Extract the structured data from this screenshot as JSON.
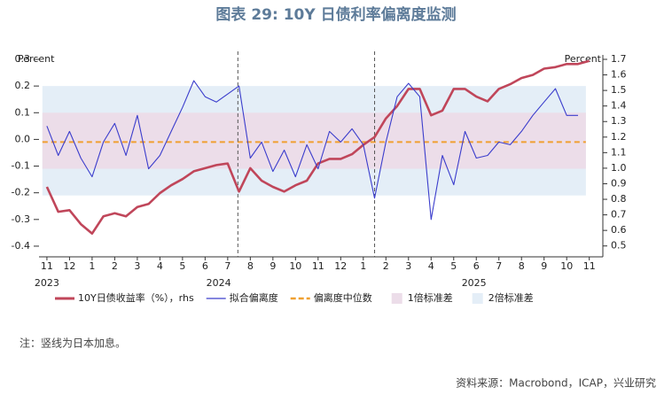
{
  "chart_data": {
    "type": "line",
    "title": "图表 29: 10Y 日债利率偏离度监测",
    "y_label": "Percent",
    "y2_label": "Percent",
    "x": [
      0,
      0.5,
      1,
      1.5,
      2,
      2.5,
      3,
      3.5,
      4,
      4.5,
      5,
      5.5,
      6,
      6.5,
      7,
      7.5,
      8,
      8.5,
      9,
      9.5,
      10,
      10.5,
      11,
      11.5,
      12,
      12.5,
      13,
      13.5,
      14,
      14.5,
      15,
      15.5,
      16,
      16.5,
      17,
      17.5,
      18,
      18.5,
      19,
      19.5,
      20,
      20.5,
      21,
      21.5,
      22,
      22.5,
      23,
      23.5,
      24
    ],
    "xlim": [
      -0.35,
      24.6
    ],
    "xticks": [
      {
        "value": 0,
        "label": "11"
      },
      {
        "value": 1,
        "label": "12"
      },
      {
        "value": 2,
        "label": "1"
      },
      {
        "value": 3,
        "label": "2"
      },
      {
        "value": 4,
        "label": "3"
      },
      {
        "value": 5,
        "label": "4"
      },
      {
        "value": 6,
        "label": "5"
      },
      {
        "value": 7,
        "label": "6"
      },
      {
        "value": 8,
        "label": "7"
      },
      {
        "value": 9,
        "label": "8"
      },
      {
        "value": 10,
        "label": "9"
      },
      {
        "value": 11,
        "label": "10"
      },
      {
        "value": 12,
        "label": "11"
      },
      {
        "value": 13,
        "label": "12"
      },
      {
        "value": 14,
        "label": "1"
      },
      {
        "value": 15,
        "label": "2"
      },
      {
        "value": 16,
        "label": "3"
      },
      {
        "value": 17,
        "label": "4"
      },
      {
        "value": 18,
        "label": "5"
      },
      {
        "value": 19,
        "label": "6"
      },
      {
        "value": 20,
        "label": "7"
      },
      {
        "value": 21,
        "label": "8"
      },
      {
        "value": 22,
        "label": "9"
      },
      {
        "value": 23,
        "label": "10"
      },
      {
        "value": 24,
        "label": "11"
      }
    ],
    "year_labels": [
      {
        "value": 0,
        "label": "2023"
      },
      {
        "value": 7.6,
        "label": "2024"
      },
      {
        "value": 18.9,
        "label": "2025"
      }
    ],
    "ylim": [
      -0.44,
      0.3
    ],
    "yticks": [
      0.3,
      0.2,
      0.1,
      {
        "value": 0,
        "label": "0.0"
      },
      -0.1,
      -0.2,
      -0.3,
      -0.4
    ],
    "y2lim": [
      0.43,
      1.7
    ],
    "y2ticks": [
      1.7,
      1.6,
      1.5,
      1.4,
      1.3,
      1.2,
      1.1,
      {
        "value": 1,
        "label": "1.0"
      },
      0.9,
      0.8,
      0.7,
      0.6,
      0.5
    ],
    "series": [
      {
        "name": "10Y日债收益率（%），rhs",
        "color": "#c0465a",
        "axis": "y2",
        "values": [
          0.88,
          0.72,
          0.73,
          0.64,
          0.58,
          0.69,
          0.71,
          0.69,
          0.75,
          0.77,
          0.84,
          0.89,
          0.93,
          0.98,
          1.0,
          1.02,
          1.03,
          0.85,
          1.0,
          0.92,
          0.88,
          0.85,
          0.89,
          0.92,
          1.03,
          1.06,
          1.06,
          1.09,
          1.15,
          1.2,
          1.32,
          1.4,
          1.51,
          1.51,
          1.34,
          1.37,
          1.51,
          1.51,
          1.46,
          1.43,
          1.51,
          1.54,
          1.58,
          1.6,
          1.64,
          1.65,
          1.67,
          1.67,
          1.69
        ]
      },
      {
        "name": "拟合偏离度",
        "color": "#3b3dcc",
        "values": [
          0.05,
          -0.06,
          0.03,
          -0.07,
          -0.14,
          -0.01,
          0.06,
          -0.06,
          0.09,
          -0.11,
          -0.06,
          0.03,
          0.12,
          0.22,
          0.16,
          0.14,
          0.17,
          0.2,
          -0.07,
          -0.01,
          -0.12,
          -0.04,
          -0.14,
          -0.02,
          -0.11,
          0.03,
          -0.01,
          0.04,
          -0.02,
          -0.22,
          -0.01,
          0.16,
          0.21,
          0.16,
          -0.3,
          -0.06,
          -0.17,
          0.03,
          -0.07,
          -0.06,
          -0.01,
          -0.02,
          0.03,
          0.09,
          0.14,
          0.19,
          0.09,
          0.09,
          null
        ]
      }
    ],
    "median": {
      "name": "偏离度中位数",
      "value": -0.01,
      "color": "#f0a030"
    },
    "bands": [
      {
        "name": "1倍标准差",
        "range": [
          -0.11,
          0.1
        ],
        "color": "#ecdde9"
      },
      {
        "name": "2倍标准差",
        "range": [
          -0.21,
          0.2
        ],
        "color": "#e4eef7"
      }
    ],
    "vlines": [
      8.45,
      14.5
    ],
    "footnote": "注：竖线为日本加息。",
    "source": "资料来源：Macrobond，ICAP，兴业研究"
  }
}
